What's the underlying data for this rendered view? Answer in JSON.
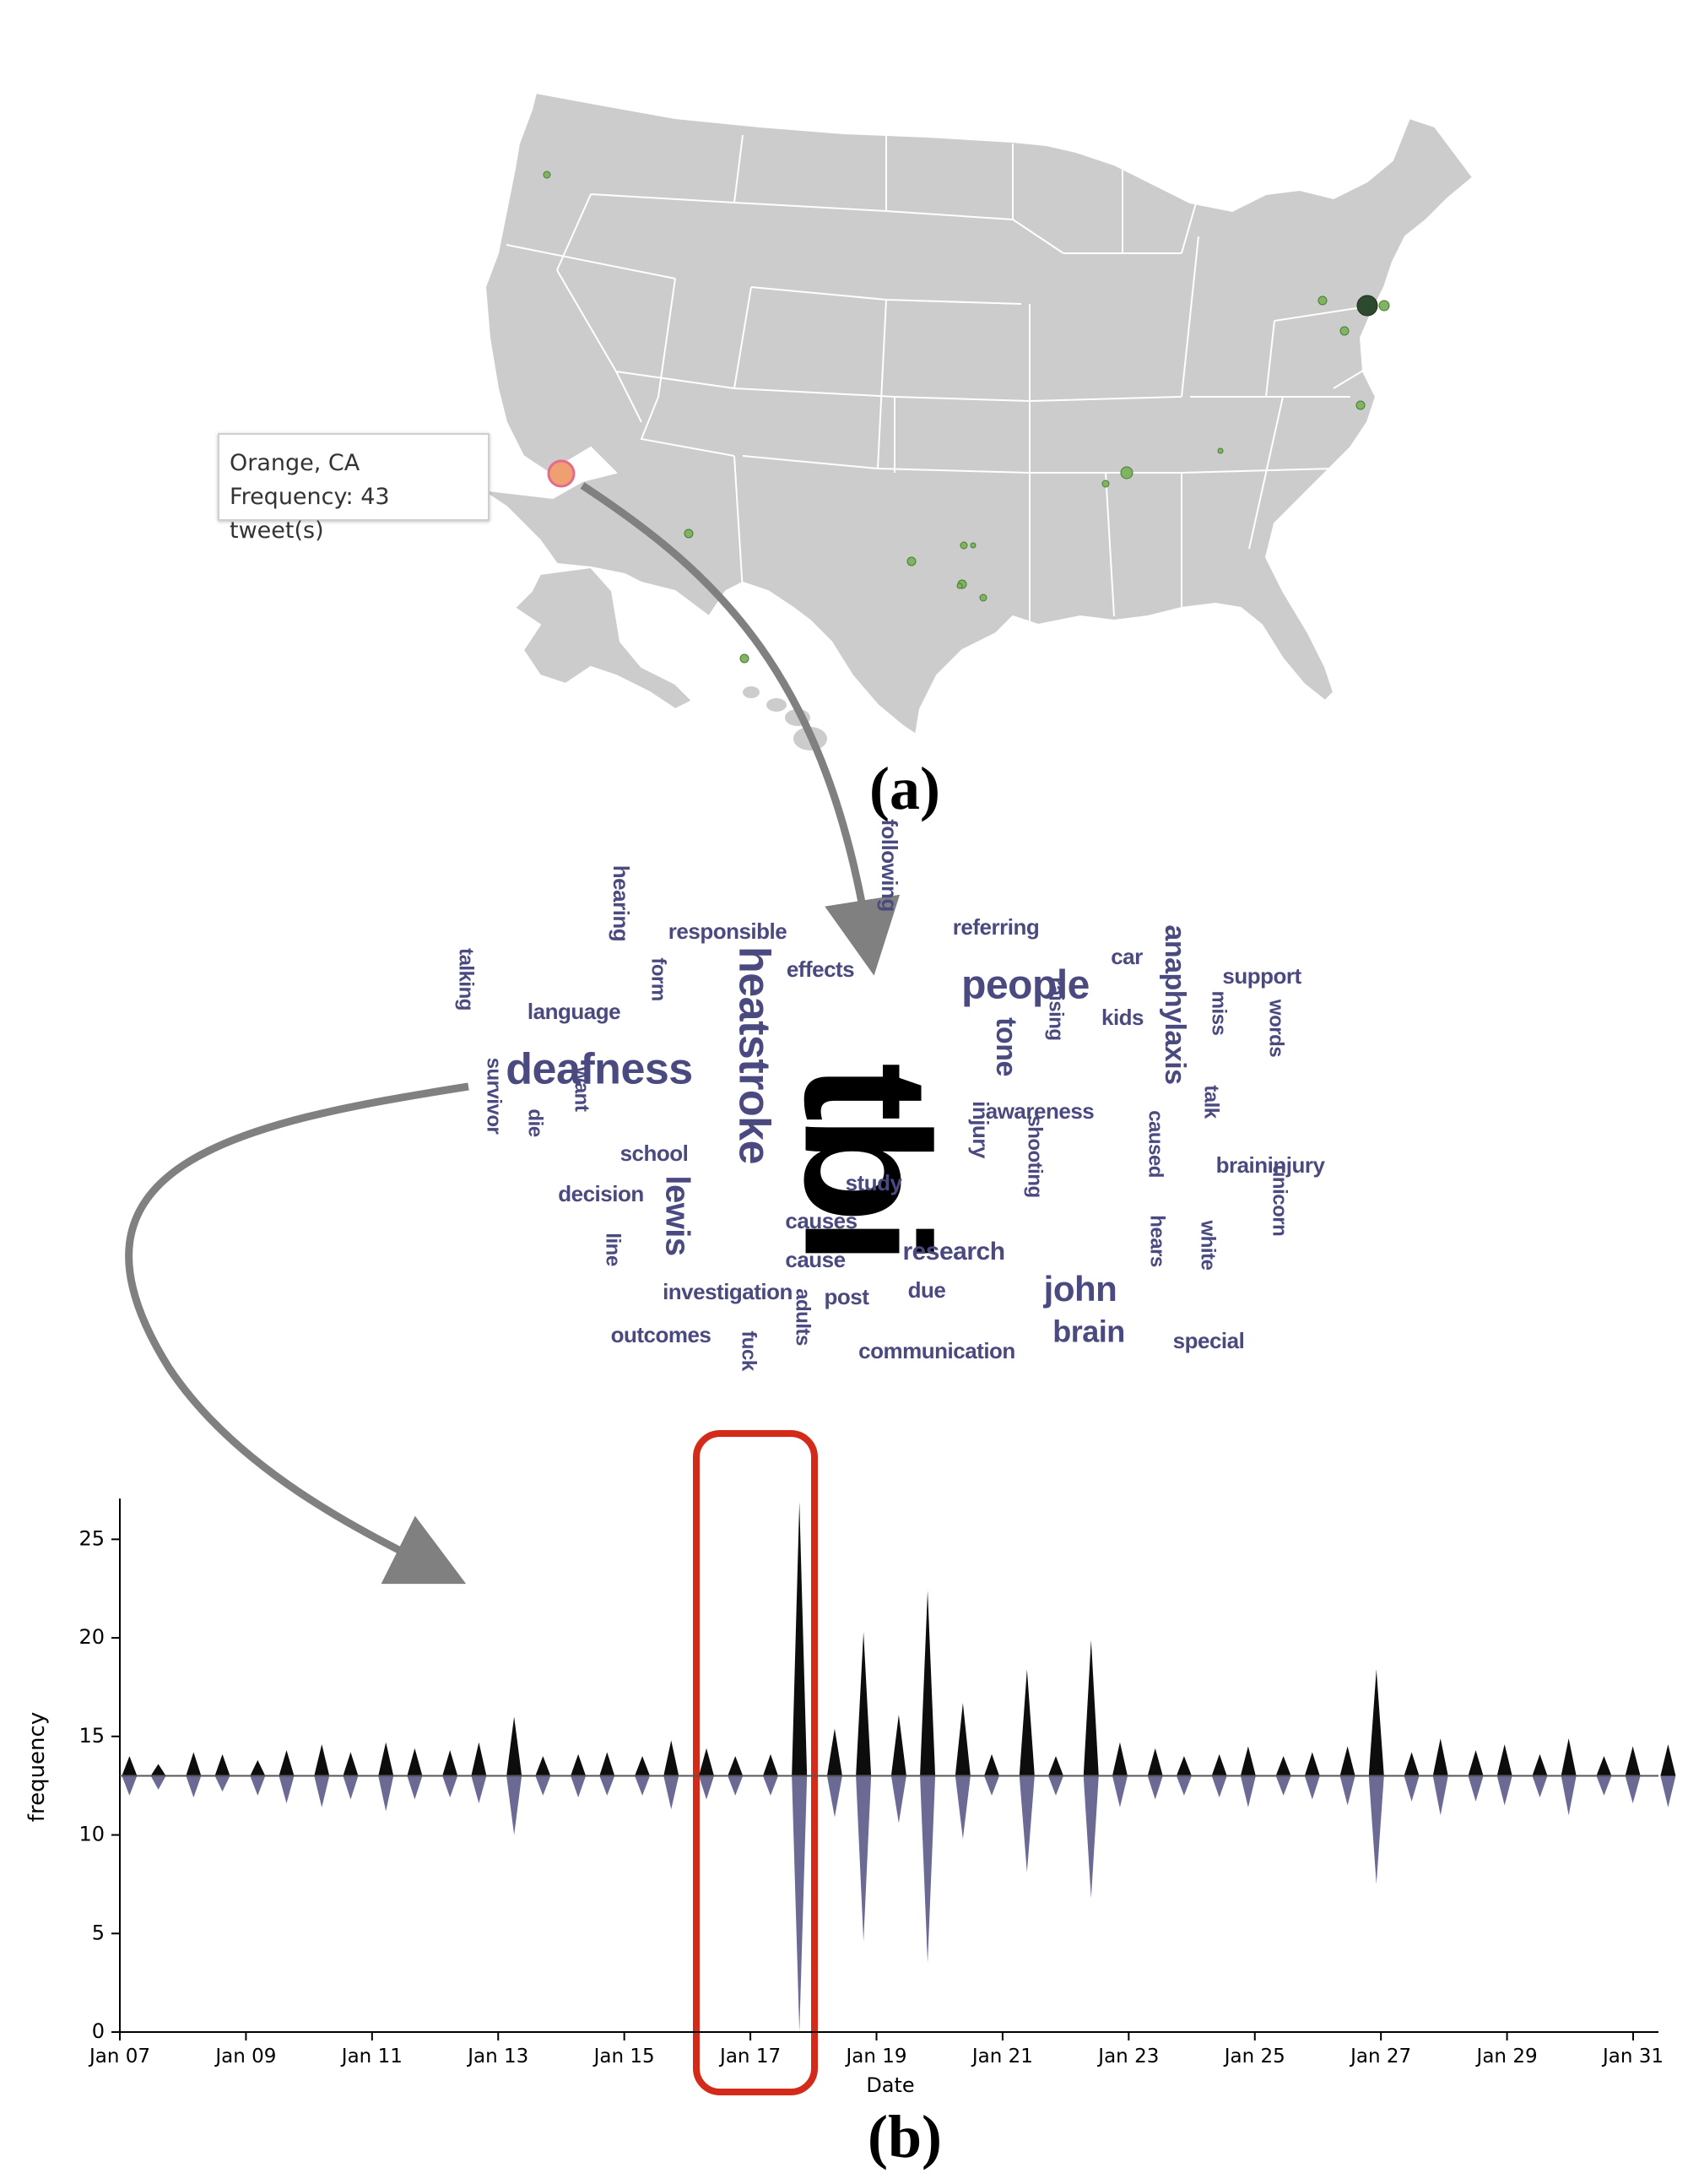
{
  "map": {
    "tooltip": {
      "location": "Orange, CA",
      "frequency_text": "Frequency: 43 tweet(s)"
    },
    "colors": {
      "land": "#cccccc",
      "borders": "#ffffff",
      "marker": "#7fb561",
      "marker_dark": "#2e4a2e",
      "marker_selected": "#f0a070"
    }
  },
  "captions": {
    "a": "(a)",
    "b": "(b)"
  },
  "word_cloud": {
    "color": "#4a4a80",
    "highlight_color": "#000000",
    "words": [
      {
        "text": "tbi",
        "weight": 100
      },
      {
        "text": "heatstroke",
        "weight": 40
      },
      {
        "text": "deafness",
        "weight": 38
      },
      {
        "text": "people",
        "weight": 34
      },
      {
        "text": "john",
        "weight": 30
      },
      {
        "text": "lewis",
        "weight": 28
      },
      {
        "text": "anaphylaxis",
        "weight": 24
      },
      {
        "text": "brain",
        "weight": 24
      },
      {
        "text": "tone",
        "weight": 22
      },
      {
        "text": "research",
        "weight": 20
      },
      {
        "text": "responsible",
        "weight": 18
      },
      {
        "text": "following",
        "weight": 18
      },
      {
        "text": "referring",
        "weight": 18
      },
      {
        "text": "car",
        "weight": 18
      },
      {
        "text": "support",
        "weight": 18
      },
      {
        "text": "hearing",
        "weight": 18
      },
      {
        "text": "effects",
        "weight": 18
      },
      {
        "text": "form",
        "weight": 16
      },
      {
        "text": "talking",
        "weight": 16
      },
      {
        "text": "language",
        "weight": 18
      },
      {
        "text": "kids",
        "weight": 18
      },
      {
        "text": "raising",
        "weight": 16
      },
      {
        "text": "miss",
        "weight": 16
      },
      {
        "text": "words",
        "weight": 16
      },
      {
        "text": "awareness",
        "weight": 18
      },
      {
        "text": "talk",
        "weight": 16
      },
      {
        "text": "survivor",
        "weight": 16
      },
      {
        "text": "want",
        "weight": 16
      },
      {
        "text": "die",
        "weight": 16
      },
      {
        "text": "school",
        "weight": 18
      },
      {
        "text": "injury",
        "weight": 18
      },
      {
        "text": "caused",
        "weight": 16
      },
      {
        "text": "braininjury",
        "weight": 18
      },
      {
        "text": "decision",
        "weight": 18
      },
      {
        "text": "study",
        "weight": 18
      },
      {
        "text": "shooting",
        "weight": 16
      },
      {
        "text": "causes",
        "weight": 18
      },
      {
        "text": "unicorn",
        "weight": 16
      },
      {
        "text": "cause",
        "weight": 18
      },
      {
        "text": "line",
        "weight": 16
      },
      {
        "text": "investigation",
        "weight": 18
      },
      {
        "text": "post",
        "weight": 18
      },
      {
        "text": "due",
        "weight": 18
      },
      {
        "text": "hears",
        "weight": 16
      },
      {
        "text": "white",
        "weight": 16
      },
      {
        "text": "outcomes",
        "weight": 18
      },
      {
        "text": "adults",
        "weight": 16
      },
      {
        "text": "communication",
        "weight": 18
      },
      {
        "text": "special",
        "weight": 18
      },
      {
        "text": "fuck",
        "weight": 16
      }
    ]
  },
  "chart_data": {
    "type": "area",
    "title": "",
    "xlabel": "Date",
    "ylabel": "frequency",
    "ylim": [
      0,
      26
    ],
    "yticks": [
      0,
      5,
      10,
      15,
      20,
      25
    ],
    "x_ticks": [
      "Jan 07",
      "Jan 09",
      "Jan 11",
      "Jan 13",
      "Jan 15",
      "Jan 17",
      "Jan 19",
      "Jan 21",
      "Jan 23",
      "Jan 25",
      "Jan 27",
      "Jan 29",
      "Jan 31"
    ],
    "x_start": "Jan 07",
    "x_end": "Jan 31",
    "baseline": 13,
    "highlight_range": [
      "Jan 16",
      "Jan 18"
    ],
    "highlight_color": "#d42a1a",
    "series": [
      {
        "color": "#000000",
        "points": [
          {
            "x": "Jan 07",
            "y": 14.0
          },
          {
            "x": "Jan 07",
            "y": 13.6
          },
          {
            "x": "Jan 08",
            "y": 14.2
          },
          {
            "x": "Jan 08",
            "y": 14.1
          },
          {
            "x": "Jan 09",
            "y": 13.8
          },
          {
            "x": "Jan 09",
            "y": 14.3
          },
          {
            "x": "Jan 10",
            "y": 14.6
          },
          {
            "x": "Jan 10",
            "y": 14.2
          },
          {
            "x": "Jan 11",
            "y": 14.7
          },
          {
            "x": "Jan 11",
            "y": 14.4
          },
          {
            "x": "Jan 12",
            "y": 14.3
          },
          {
            "x": "Jan 12",
            "y": 14.7
          },
          {
            "x": "Jan 13",
            "y": 16.0
          },
          {
            "x": "Jan 13",
            "y": 14.0
          },
          {
            "x": "Jan 14",
            "y": 14.1
          },
          {
            "x": "Jan 14",
            "y": 14.2
          },
          {
            "x": "Jan 15",
            "y": 14.0
          },
          {
            "x": "Jan 15",
            "y": 14.8
          },
          {
            "x": "Jan 16",
            "y": 14.4
          },
          {
            "x": "Jan 16",
            "y": 14.0
          },
          {
            "x": "Jan 17",
            "y": 14.1
          },
          {
            "x": "Jan 17",
            "y": 26.9
          },
          {
            "x": "Jan 18",
            "y": 15.4
          },
          {
            "x": "Jan 18",
            "y": 20.3
          },
          {
            "x": "Jan 19",
            "y": 16.1
          },
          {
            "x": "Jan 19",
            "y": 22.4
          },
          {
            "x": "Jan 20",
            "y": 16.7
          },
          {
            "x": "Jan 20",
            "y": 14.1
          },
          {
            "x": "Jan 21",
            "y": 18.4
          },
          {
            "x": "Jan 21",
            "y": 14.0
          },
          {
            "x": "Jan 22",
            "y": 19.9
          },
          {
            "x": "Jan 22",
            "y": 14.7
          },
          {
            "x": "Jan 23",
            "y": 14.4
          },
          {
            "x": "Jan 23",
            "y": 14.0
          },
          {
            "x": "Jan 24",
            "y": 14.1
          },
          {
            "x": "Jan 24",
            "y": 14.5
          },
          {
            "x": "Jan 25",
            "y": 14.0
          },
          {
            "x": "Jan 25",
            "y": 14.2
          },
          {
            "x": "Jan 26",
            "y": 14.5
          },
          {
            "x": "Jan 26",
            "y": 18.4
          },
          {
            "x": "Jan 27",
            "y": 14.2
          },
          {
            "x": "Jan 27",
            "y": 14.9
          },
          {
            "x": "Jan 28",
            "y": 14.3
          },
          {
            "x": "Jan 28",
            "y": 14.6
          },
          {
            "x": "Jan 29",
            "y": 14.1
          },
          {
            "x": "Jan 29",
            "y": 14.9
          },
          {
            "x": "Jan 30",
            "y": 14.0
          },
          {
            "x": "Jan 30",
            "y": 14.5
          },
          {
            "x": "Jan 31",
            "y": 14.6
          },
          {
            "x": "Jan 31",
            "y": 15.3
          }
        ]
      },
      {
        "color": "#5a5a8a",
        "points": [
          {
            "x": "Jan 07",
            "y": 12.0
          },
          {
            "x": "Jan 07",
            "y": 12.3
          },
          {
            "x": "Jan 08",
            "y": 11.9
          },
          {
            "x": "Jan 08",
            "y": 12.2
          },
          {
            "x": "Jan 09",
            "y": 12.0
          },
          {
            "x": "Jan 09",
            "y": 11.6
          },
          {
            "x": "Jan 10",
            "y": 11.4
          },
          {
            "x": "Jan 10",
            "y": 11.8
          },
          {
            "x": "Jan 11",
            "y": 11.2
          },
          {
            "x": "Jan 11",
            "y": 11.8
          },
          {
            "x": "Jan 12",
            "y": 11.9
          },
          {
            "x": "Jan 12",
            "y": 11.6
          },
          {
            "x": "Jan 13",
            "y": 10.0
          },
          {
            "x": "Jan 13",
            "y": 12.0
          },
          {
            "x": "Jan 14",
            "y": 11.9
          },
          {
            "x": "Jan 14",
            "y": 12.0
          },
          {
            "x": "Jan 15",
            "y": 12.0
          },
          {
            "x": "Jan 15",
            "y": 11.3
          },
          {
            "x": "Jan 16",
            "y": 11.8
          },
          {
            "x": "Jan 16",
            "y": 12.0
          },
          {
            "x": "Jan 17",
            "y": 12.0
          },
          {
            "x": "Jan 17",
            "y": 0.0
          },
          {
            "x": "Jan 18",
            "y": 10.9
          },
          {
            "x": "Jan 18",
            "y": 4.6
          },
          {
            "x": "Jan 19",
            "y": 10.6
          },
          {
            "x": "Jan 19",
            "y": 3.5
          },
          {
            "x": "Jan 20",
            "y": 9.8
          },
          {
            "x": "Jan 20",
            "y": 12.0
          },
          {
            "x": "Jan 21",
            "y": 8.1
          },
          {
            "x": "Jan 21",
            "y": 12.0
          },
          {
            "x": "Jan 22",
            "y": 6.8
          },
          {
            "x": "Jan 22",
            "y": 11.4
          },
          {
            "x": "Jan 23",
            "y": 11.8
          },
          {
            "x": "Jan 23",
            "y": 12.0
          },
          {
            "x": "Jan 24",
            "y": 11.9
          },
          {
            "x": "Jan 24",
            "y": 11.4
          },
          {
            "x": "Jan 25",
            "y": 12.0
          },
          {
            "x": "Jan 25",
            "y": 11.8
          },
          {
            "x": "Jan 26",
            "y": 11.5
          },
          {
            "x": "Jan 26",
            "y": 7.5
          },
          {
            "x": "Jan 27",
            "y": 11.7
          },
          {
            "x": "Jan 27",
            "y": 11.0
          },
          {
            "x": "Jan 28",
            "y": 11.7
          },
          {
            "x": "Jan 28",
            "y": 11.5
          },
          {
            "x": "Jan 29",
            "y": 11.9
          },
          {
            "x": "Jan 29",
            "y": 11.0
          },
          {
            "x": "Jan 30",
            "y": 12.0
          },
          {
            "x": "Jan 30",
            "y": 11.6
          },
          {
            "x": "Jan 31",
            "y": 11.4
          },
          {
            "x": "Jan 31",
            "y": 10.8
          }
        ]
      }
    ]
  }
}
